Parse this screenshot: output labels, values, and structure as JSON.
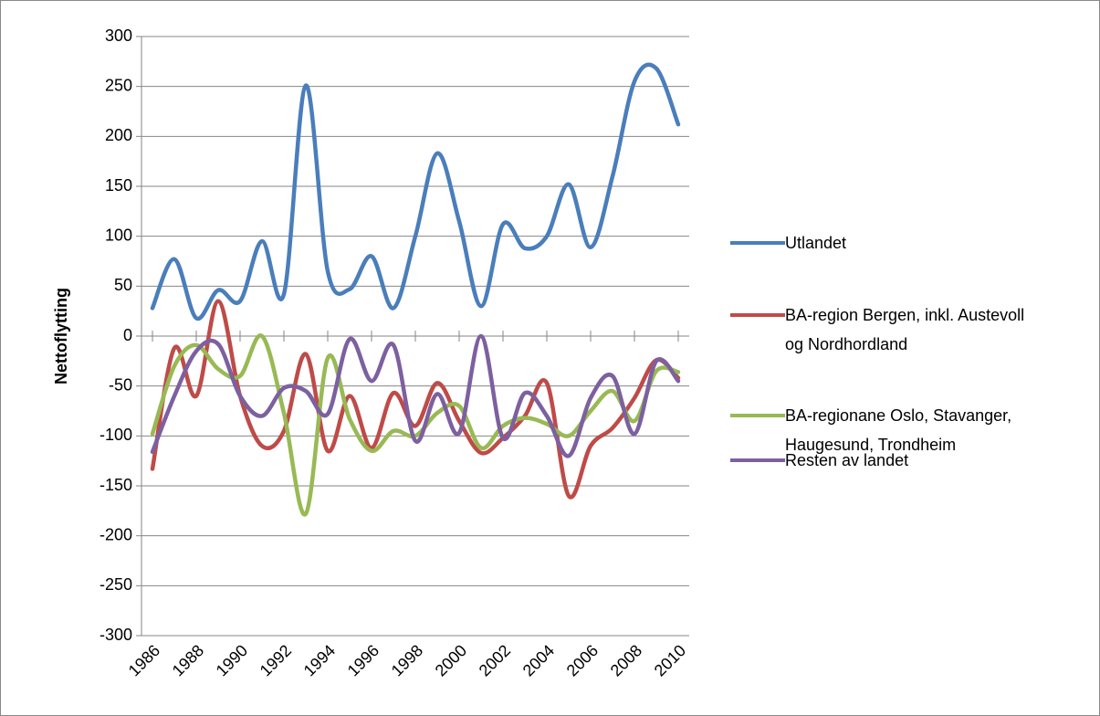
{
  "chart_data": {
    "type": "line",
    "y_label": "Nettoflytting",
    "x": [
      1986,
      1987,
      1988,
      1989,
      1990,
      1991,
      1992,
      1993,
      1994,
      1995,
      1996,
      1997,
      1998,
      1999,
      2000,
      2001,
      2002,
      2003,
      2004,
      2005,
      2006,
      2007,
      2008,
      2009,
      2010
    ],
    "xlim": [
      1985.5,
      2010.5
    ],
    "xticks": [
      1986,
      1988,
      1990,
      1992,
      1994,
      1996,
      1998,
      2000,
      2002,
      2004,
      2006,
      2008,
      2010
    ],
    "ylim": [
      -300,
      300
    ],
    "yticks": [
      -300,
      -250,
      -200,
      -150,
      -100,
      -50,
      0,
      50,
      100,
      150,
      200,
      250,
      300
    ],
    "grid": true,
    "legend": "right",
    "series": [
      {
        "name": "Utlandet",
        "color": "#4a7ebb",
        "values": [
          28,
          77,
          18,
          46,
          35,
          95,
          42,
          251,
          65,
          47,
          80,
          28,
          100,
          183,
          115,
          30,
          112,
          88,
          100,
          152,
          89,
          160,
          255,
          268,
          212
        ]
      },
      {
        "name": "BA-region Bergen, inkl. Austevoll og Nordhordland",
        "color": "#be4b48",
        "values": [
          -133,
          -12,
          -60,
          35,
          -60,
          -110,
          -95,
          -18,
          -115,
          -60,
          -112,
          -57,
          -90,
          -47,
          -85,
          -117,
          -102,
          -80,
          -47,
          -160,
          -110,
          -92,
          -62,
          -24,
          -42
        ]
      },
      {
        "name": "BA-regionane Oslo, Stavanger, Haugesund, Trondheim",
        "color": "#98b954",
        "values": [
          -98,
          -30,
          -9,
          -33,
          -40,
          0,
          -77,
          -178,
          -22,
          -83,
          -115,
          -95,
          -100,
          -77,
          -70,
          -112,
          -90,
          -82,
          -88,
          -100,
          -75,
          -55,
          -85,
          -35,
          -36
        ]
      },
      {
        "name": "Resten av landet",
        "color": "#7d60a0",
        "values": [
          -116,
          -60,
          -15,
          -8,
          -60,
          -80,
          -52,
          -55,
          -78,
          -3,
          -45,
          -9,
          -105,
          -58,
          -97,
          0,
          -102,
          -57,
          -80,
          -120,
          -62,
          -40,
          -98,
          -25,
          -45
        ]
      }
    ]
  }
}
